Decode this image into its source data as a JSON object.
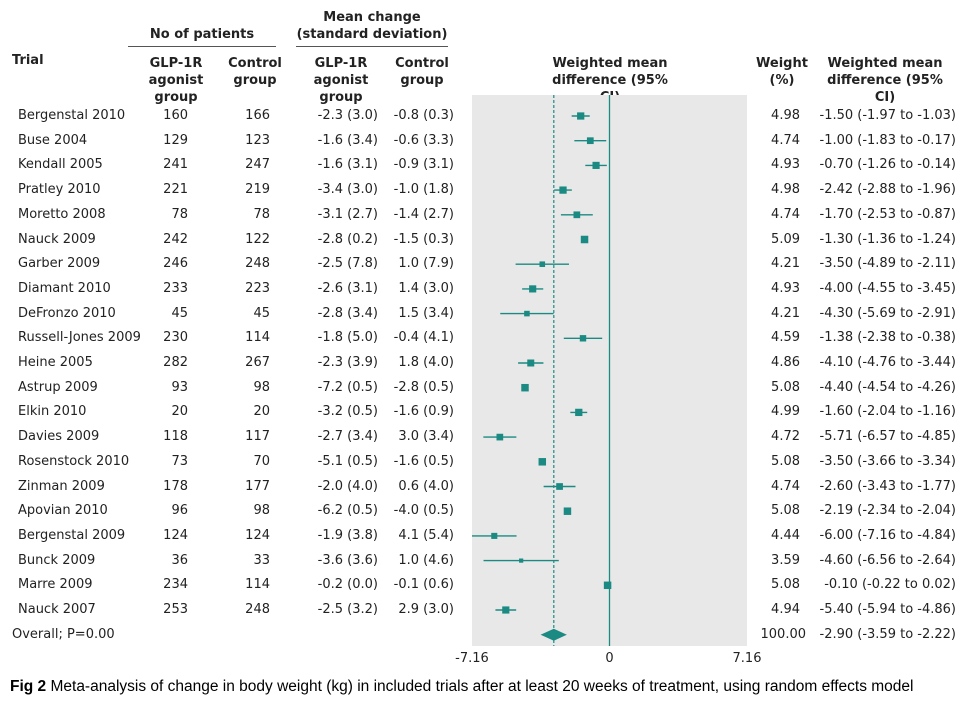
{
  "headers": {
    "trial": "Trial",
    "patients_group": "No of patients",
    "glp1_col": "GLP-1R agonist group",
    "control_col": "Control group",
    "mean_change_group": "Mean change (standard deviation)",
    "glp1_col2": "GLP-1R agonist group",
    "control_col2": "Control group",
    "wmd_plot": "Weighted mean difference (95% CI)",
    "weight": "Weight (%)",
    "wmd_text": "Weighted mean difference (95% CI)"
  },
  "overall_label": "Overall; P=0.00",
  "caption": {
    "prefix": "Fig 2",
    "text": " Meta-analysis of change in body weight (kg) in included trials after at least 20 weeks of treatment, using random effects model"
  },
  "colors": {
    "marker": "#1b8a82",
    "panel": "#e8e8e8",
    "line": "#1b8a82"
  },
  "chart_data": {
    "type": "forest",
    "xlim": [
      -7.16,
      7.16
    ],
    "xticks": [
      "-7.16",
      "0",
      "7.16"
    ],
    "reference_line": 0,
    "rows": [
      {
        "trial": "Bergenstal 2010",
        "n_glp": "160",
        "n_ctrl": "166",
        "mc_glp": "-2.3 (3.0)",
        "mc_ctrl": "-0.8 (0.3)",
        "weight": "4.98",
        "wmd_text": "-1.50 (-1.97 to -1.03)",
        "est": -1.5,
        "lo": -1.97,
        "hi": -1.03
      },
      {
        "trial": "Buse 2004",
        "n_glp": "129",
        "n_ctrl": "123",
        "mc_glp": "-1.6 (3.4)",
        "mc_ctrl": "-0.6 (3.3)",
        "weight": "4.74",
        "wmd_text": "-1.00 (-1.83 to -0.17)",
        "est": -1.0,
        "lo": -1.83,
        "hi": -0.17
      },
      {
        "trial": "Kendall 2005",
        "n_glp": "241",
        "n_ctrl": "247",
        "mc_glp": "-1.6 (3.1)",
        "mc_ctrl": "-0.9 (3.1)",
        "weight": "4.93",
        "wmd_text": "-0.70 (-1.26 to -0.14)",
        "est": -0.7,
        "lo": -1.26,
        "hi": -0.14
      },
      {
        "trial": "Pratley 2010",
        "n_glp": "221",
        "n_ctrl": "219",
        "mc_glp": "-3.4 (3.0)",
        "mc_ctrl": "-1.0 (1.8)",
        "weight": "4.98",
        "wmd_text": "-2.42 (-2.88 to -1.96)",
        "est": -2.42,
        "lo": -2.88,
        "hi": -1.96
      },
      {
        "trial": "Moretto 2008",
        "n_glp": "78",
        "n_ctrl": "78",
        "mc_glp": "-3.1 (2.7)",
        "mc_ctrl": "-1.4 (2.7)",
        "weight": "4.74",
        "wmd_text": "-1.70 (-2.53 to -0.87)",
        "est": -1.7,
        "lo": -2.53,
        "hi": -0.87
      },
      {
        "trial": "Nauck 2009",
        "n_glp": "242",
        "n_ctrl": "122",
        "mc_glp": "-2.8 (0.2)",
        "mc_ctrl": "-1.5 (0.3)",
        "weight": "5.09",
        "wmd_text": "-1.30 (-1.36 to -1.24)",
        "est": -1.3,
        "lo": -1.36,
        "hi": -1.24
      },
      {
        "trial": "Garber 2009",
        "n_glp": "246",
        "n_ctrl": "248",
        "mc_glp": "-2.5 (7.8)",
        "mc_ctrl": "1.0 (7.9)",
        "weight": "4.21",
        "wmd_text": "-3.50 (-4.89 to -2.11)",
        "est": -3.5,
        "lo": -4.89,
        "hi": -2.11
      },
      {
        "trial": "Diamant 2010",
        "n_glp": "233",
        "n_ctrl": "223",
        "mc_glp": "-2.6 (3.1)",
        "mc_ctrl": "1.4 (3.0)",
        "weight": "4.93",
        "wmd_text": "-4.00 (-4.55 to -3.45)",
        "est": -4.0,
        "lo": -4.55,
        "hi": -3.45
      },
      {
        "trial": "DeFronzo 2010",
        "n_glp": "45",
        "n_ctrl": "45",
        "mc_glp": "-2.8 (3.4)",
        "mc_ctrl": "1.5 (3.4)",
        "weight": "4.21",
        "wmd_text": "-4.30 (-5.69 to -2.91)",
        "est": -4.3,
        "lo": -5.69,
        "hi": -2.91
      },
      {
        "trial": "Russell-Jones 2009",
        "n_glp": "230",
        "n_ctrl": "114",
        "mc_glp": "-1.8 (5.0)",
        "mc_ctrl": "-0.4 (4.1)",
        "weight": "4.59",
        "wmd_text": "-1.38 (-2.38 to -0.38)",
        "est": -1.38,
        "lo": -2.38,
        "hi": -0.38
      },
      {
        "trial": "Heine 2005",
        "n_glp": "282",
        "n_ctrl": "267",
        "mc_glp": "-2.3 (3.9)",
        "mc_ctrl": "1.8 (4.0)",
        "weight": "4.86",
        "wmd_text": "-4.10 (-4.76 to -3.44)",
        "est": -4.1,
        "lo": -4.76,
        "hi": -3.44
      },
      {
        "trial": "Astrup 2009",
        "n_glp": "93",
        "n_ctrl": "98",
        "mc_glp": "-7.2 (0.5)",
        "mc_ctrl": "-2.8 (0.5)",
        "weight": "5.08",
        "wmd_text": "-4.40 (-4.54 to -4.26)",
        "est": -4.4,
        "lo": -4.54,
        "hi": -4.26
      },
      {
        "trial": "Elkin 2010",
        "n_glp": "20",
        "n_ctrl": "20",
        "mc_glp": "-3.2 (0.5)",
        "mc_ctrl": "-1.6 (0.9)",
        "weight": "4.99",
        "wmd_text": "-1.60 (-2.04 to -1.16)",
        "est": -1.6,
        "lo": -2.04,
        "hi": -1.16
      },
      {
        "trial": "Davies 2009",
        "n_glp": "118",
        "n_ctrl": "117",
        "mc_glp": "-2.7 (3.4)",
        "mc_ctrl": "3.0 (3.4)",
        "weight": "4.72",
        "wmd_text": "-5.71 (-6.57 to -4.85)",
        "est": -5.71,
        "lo": -6.57,
        "hi": -4.85
      },
      {
        "trial": "Rosenstock 2010",
        "n_glp": "73",
        "n_ctrl": "70",
        "mc_glp": "-5.1 (0.5)",
        "mc_ctrl": "-1.6 (0.5)",
        "weight": "5.08",
        "wmd_text": "-3.50 (-3.66 to -3.34)",
        "est": -3.5,
        "lo": -3.66,
        "hi": -3.34
      },
      {
        "trial": "Zinman 2009",
        "n_glp": "178",
        "n_ctrl": "177",
        "mc_glp": "-2.0 (4.0)",
        "mc_ctrl": "0.6 (4.0)",
        "weight": "4.74",
        "wmd_text": "-2.60 (-3.43 to -1.77)",
        "est": -2.6,
        "lo": -3.43,
        "hi": -1.77
      },
      {
        "trial": "Apovian 2010",
        "n_glp": "96",
        "n_ctrl": "98",
        "mc_glp": "-6.2 (0.5)",
        "mc_ctrl": "-4.0 (0.5)",
        "weight": "5.08",
        "wmd_text": "-2.19 (-2.34 to -2.04)",
        "est": -2.19,
        "lo": -2.34,
        "hi": -2.04
      },
      {
        "trial": "Bergenstal 2009",
        "n_glp": "124",
        "n_ctrl": "124",
        "mc_glp": "-1.9 (3.8)",
        "mc_ctrl": "4.1 (5.4)",
        "weight": "4.44",
        "wmd_text": "-6.00 (-7.16 to -4.84)",
        "est": -6.0,
        "lo": -7.16,
        "hi": -4.84
      },
      {
        "trial": "Bunck 2009",
        "n_glp": "36",
        "n_ctrl": "33",
        "mc_glp": "-3.6 (3.6)",
        "mc_ctrl": "1.0 (4.6)",
        "weight": "3.59",
        "wmd_text": "-4.60 (-6.56 to -2.64)",
        "est": -4.6,
        "lo": -6.56,
        "hi": -2.64
      },
      {
        "trial": "Marre 2009",
        "n_glp": "234",
        "n_ctrl": "114",
        "mc_glp": "-0.2 (0.0)",
        "mc_ctrl": "-0.1 (0.6)",
        "weight": "5.08",
        "wmd_text": "-0.10 (-0.22 to 0.02)",
        "est": -0.1,
        "lo": -0.22,
        "hi": 0.02
      },
      {
        "trial": "Nauck 2007",
        "n_glp": "253",
        "n_ctrl": "248",
        "mc_glp": "-2.5 (3.2)",
        "mc_ctrl": "2.9 (3.0)",
        "weight": "4.94",
        "wmd_text": "-5.40 (-5.94 to -4.86)",
        "est": -5.4,
        "lo": -5.94,
        "hi": -4.86
      }
    ],
    "overall": {
      "weight": "100.00",
      "wmd_text": "-2.90 (-3.59 to -2.22)",
      "est": -2.9,
      "lo": -3.59,
      "hi": -2.22
    }
  }
}
